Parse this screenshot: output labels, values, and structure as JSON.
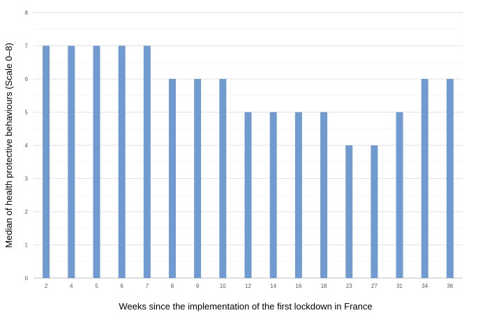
{
  "chart_data": {
    "type": "bar",
    "categories": [
      "2",
      "4",
      "5",
      "6",
      "7",
      "8",
      "9",
      "10",
      "12",
      "14",
      "16",
      "18",
      "23",
      "27",
      "31",
      "34",
      "36"
    ],
    "values": [
      7,
      7,
      7,
      7,
      7,
      6,
      6,
      6,
      5,
      5,
      5,
      5,
      4,
      4,
      5,
      6,
      6
    ],
    "title": "",
    "xlabel": "Weeks since the implementation of the first lockdown in France",
    "ylabel": "Median of health protective behaviours (Scale 0–8)",
    "ylim": [
      0,
      8
    ],
    "yticks": [
      0,
      1,
      2,
      3,
      4,
      5,
      6,
      7,
      8
    ],
    "grid": true,
    "legend": "none",
    "colors": {
      "bar": "#6f9bd1",
      "grid": "#d9d9d9",
      "axis_text": "#595959"
    }
  }
}
